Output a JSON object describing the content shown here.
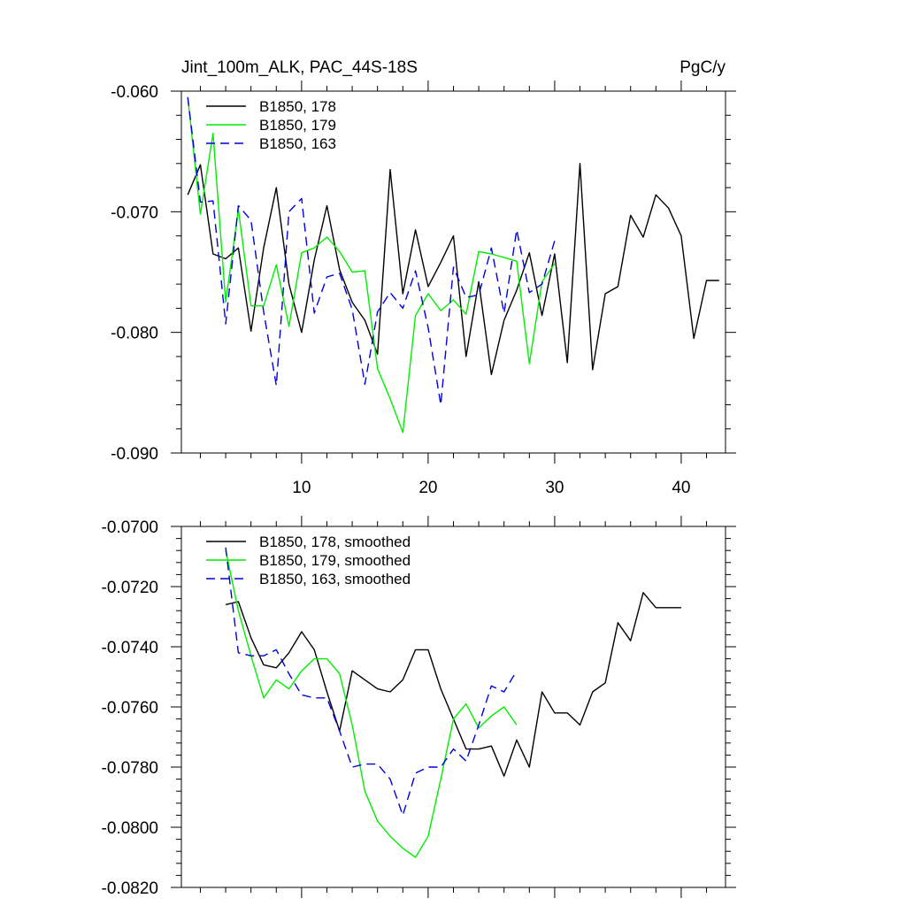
{
  "chart_data": [
    {
      "type": "line",
      "title": "Jint_100m_ALK, PAC_44S-18S",
      "units": "PgC/y",
      "xlim": [
        0.5,
        43.5
      ],
      "ylim": [
        -0.09,
        -0.06
      ],
      "xticks": [
        10,
        20,
        30,
        40
      ],
      "xtick_labels": [
        "10",
        "20",
        "30",
        "40"
      ],
      "yticks": [
        -0.06,
        -0.07,
        -0.08,
        -0.09
      ],
      "ytick_labels": [
        "-0.060",
        "-0.070",
        "-0.080",
        "-0.090"
      ],
      "series": [
        {
          "name": "B1850, 178",
          "color": "#000000",
          "dash": "solid",
          "x": [
            1,
            2,
            3,
            4,
            5,
            6,
            7,
            8,
            9,
            10,
            11,
            12,
            13,
            14,
            15,
            16,
            17,
            18,
            19,
            20,
            21,
            22,
            23,
            24,
            25,
            26,
            27,
            28,
            29,
            30,
            31,
            32,
            33,
            34,
            35,
            36,
            37,
            38,
            39,
            40,
            41,
            42,
            43
          ],
          "values": [
            -0.0686,
            -0.0661,
            -0.0735,
            -0.0739,
            -0.073,
            -0.0799,
            -0.073,
            -0.068,
            -0.076,
            -0.08,
            -0.074,
            -0.0695,
            -0.0748,
            -0.0775,
            -0.079,
            -0.0818,
            -0.0665,
            -0.0768,
            -0.0715,
            -0.0762,
            -0.0742,
            -0.072,
            -0.082,
            -0.0758,
            -0.0835,
            -0.079,
            -0.0765,
            -0.0734,
            -0.0786,
            -0.0735,
            -0.0825,
            -0.066,
            -0.0831,
            -0.0768,
            -0.0762,
            -0.0703,
            -0.0721,
            -0.0686,
            -0.0697,
            -0.072,
            -0.0805,
            -0.0757,
            -0.0757
          ]
        },
        {
          "name": "B1850, 179",
          "color": "#00ee00",
          "dash": "solid",
          "x": [
            1,
            2,
            3,
            4,
            5,
            6,
            7,
            8,
            9,
            10,
            11,
            12,
            13,
            14,
            15,
            16,
            17,
            18,
            19,
            20,
            21,
            22,
            23,
            24,
            25,
            26,
            27,
            28,
            29,
            30
          ],
          "values": [
            -0.0605,
            -0.0702,
            -0.0635,
            -0.0775,
            -0.0698,
            -0.0778,
            -0.0778,
            -0.0744,
            -0.0795,
            -0.0734,
            -0.073,
            -0.0721,
            -0.0733,
            -0.075,
            -0.0749,
            -0.083,
            -0.0855,
            -0.0883,
            -0.0786,
            -0.0768,
            -0.0782,
            -0.0773,
            -0.0785,
            -0.0733,
            -0.0735,
            -0.0738,
            -0.0741,
            -0.0826,
            -0.0758,
            -0.0743
          ]
        },
        {
          "name": "B1850, 163",
          "color": "#0000dd",
          "dash": "dashed",
          "x": [
            1,
            2,
            3,
            4,
            5,
            6,
            7,
            8,
            9,
            10,
            11,
            12,
            13,
            14,
            15,
            16,
            17,
            18,
            19,
            20,
            21,
            22,
            23,
            24,
            25,
            26,
            27,
            28,
            29,
            30
          ],
          "values": [
            -0.0605,
            -0.0692,
            -0.0691,
            -0.0793,
            -0.0695,
            -0.0707,
            -0.0783,
            -0.0844,
            -0.07,
            -0.0689,
            -0.0784,
            -0.0754,
            -0.0751,
            -0.0781,
            -0.0843,
            -0.0783,
            -0.0767,
            -0.078,
            -0.0749,
            -0.0796,
            -0.086,
            -0.0746,
            -0.0771,
            -0.0769,
            -0.073,
            -0.0784,
            -0.0715,
            -0.0767,
            -0.076,
            -0.0724
          ]
        }
      ]
    },
    {
      "type": "line",
      "title": "",
      "xlim": [
        0.5,
        43.5
      ],
      "ylim": [
        -0.082,
        -0.07
      ],
      "xticks": [
        10,
        20,
        30,
        40
      ],
      "yticks": [
        -0.07,
        -0.072,
        -0.074,
        -0.076,
        -0.078,
        -0.08,
        -0.082
      ],
      "ytick_labels": [
        "-0.0700",
        "-0.0720",
        "-0.0740",
        "-0.0760",
        "-0.0780",
        "-0.0800",
        "-0.0820"
      ],
      "series": [
        {
          "name": "B1850, 178, smoothed",
          "color": "#000000",
          "dash": "solid",
          "x": [
            4,
            5,
            6,
            7,
            8,
            9,
            10,
            11,
            12,
            13,
            14,
            15,
            16,
            17,
            18,
            19,
            20,
            21,
            22,
            23,
            24,
            25,
            26,
            27,
            28,
            29,
            30,
            31,
            32,
            33,
            34,
            35,
            36,
            37,
            38,
            39,
            40
          ],
          "values": [
            -0.0726,
            -0.0725,
            -0.0737,
            -0.0746,
            -0.0747,
            -0.0742,
            -0.0735,
            -0.0741,
            -0.0755,
            -0.0768,
            -0.0748,
            -0.0751,
            -0.0754,
            -0.0755,
            -0.0751,
            -0.0741,
            -0.0741,
            -0.0754,
            -0.0764,
            -0.0774,
            -0.0774,
            -0.0773,
            -0.0783,
            -0.0771,
            -0.078,
            -0.0755,
            -0.0762,
            -0.0762,
            -0.0766,
            -0.0755,
            -0.0752,
            -0.0732,
            -0.0738,
            -0.0722,
            -0.0727,
            -0.0727,
            -0.0727
          ]
        },
        {
          "name": "B1850, 179, smoothed",
          "color": "#00ee00",
          "dash": "solid",
          "x": [
            4,
            5,
            6,
            7,
            8,
            9,
            10,
            11,
            12,
            13,
            14,
            15,
            16,
            17,
            18,
            19,
            20,
            21,
            22,
            23,
            24,
            25,
            26,
            27
          ],
          "values": [
            -0.0708,
            -0.0728,
            -0.0743,
            -0.0757,
            -0.0751,
            -0.0754,
            -0.0748,
            -0.0744,
            -0.0744,
            -0.0749,
            -0.0766,
            -0.0788,
            -0.0798,
            -0.0803,
            -0.0807,
            -0.081,
            -0.0803,
            -0.0784,
            -0.0764,
            -0.0759,
            -0.0767,
            -0.0763,
            -0.076,
            -0.0766
          ]
        },
        {
          "name": "B1850, 163, smoothed",
          "color": "#0000dd",
          "dash": "dashed",
          "x": [
            4,
            5,
            6,
            7,
            8,
            9,
            10,
            11,
            12,
            13,
            14,
            15,
            16,
            17,
            18,
            19,
            20,
            21,
            22,
            23,
            24,
            25,
            26,
            27
          ],
          "values": [
            -0.0707,
            -0.0742,
            -0.0743,
            -0.0743,
            -0.0741,
            -0.0749,
            -0.0756,
            -0.0757,
            -0.0757,
            -0.0768,
            -0.078,
            -0.0779,
            -0.0779,
            -0.0784,
            -0.0796,
            -0.0782,
            -0.078,
            -0.078,
            -0.0774,
            -0.0778,
            -0.0766,
            -0.0753,
            -0.0755,
            -0.0748
          ]
        }
      ]
    }
  ]
}
